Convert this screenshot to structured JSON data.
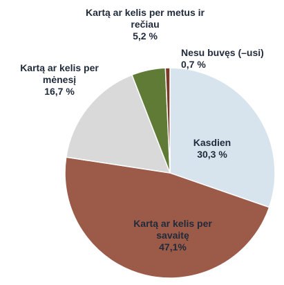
{
  "chart_data": {
    "type": "pie",
    "categories": [
      "Kasdien",
      "Kartą ar kelis per savaitę",
      "Kartą ar kelis per mėnesį",
      "Kartą ar kelis per metus ir rečiau",
      "Nesu buvęs (–usi)"
    ],
    "values": [
      30.3,
      47.1,
      16.7,
      5.2,
      0.7
    ],
    "value_labels": [
      "30,3 %",
      "47,1%",
      "16,7 %",
      "5,2 %",
      "0,7 %"
    ],
    "colors": [
      "#d7e4ee",
      "#9c5a48",
      "#d9d9d9",
      "#5f7b35",
      "#7b3a28"
    ]
  }
}
